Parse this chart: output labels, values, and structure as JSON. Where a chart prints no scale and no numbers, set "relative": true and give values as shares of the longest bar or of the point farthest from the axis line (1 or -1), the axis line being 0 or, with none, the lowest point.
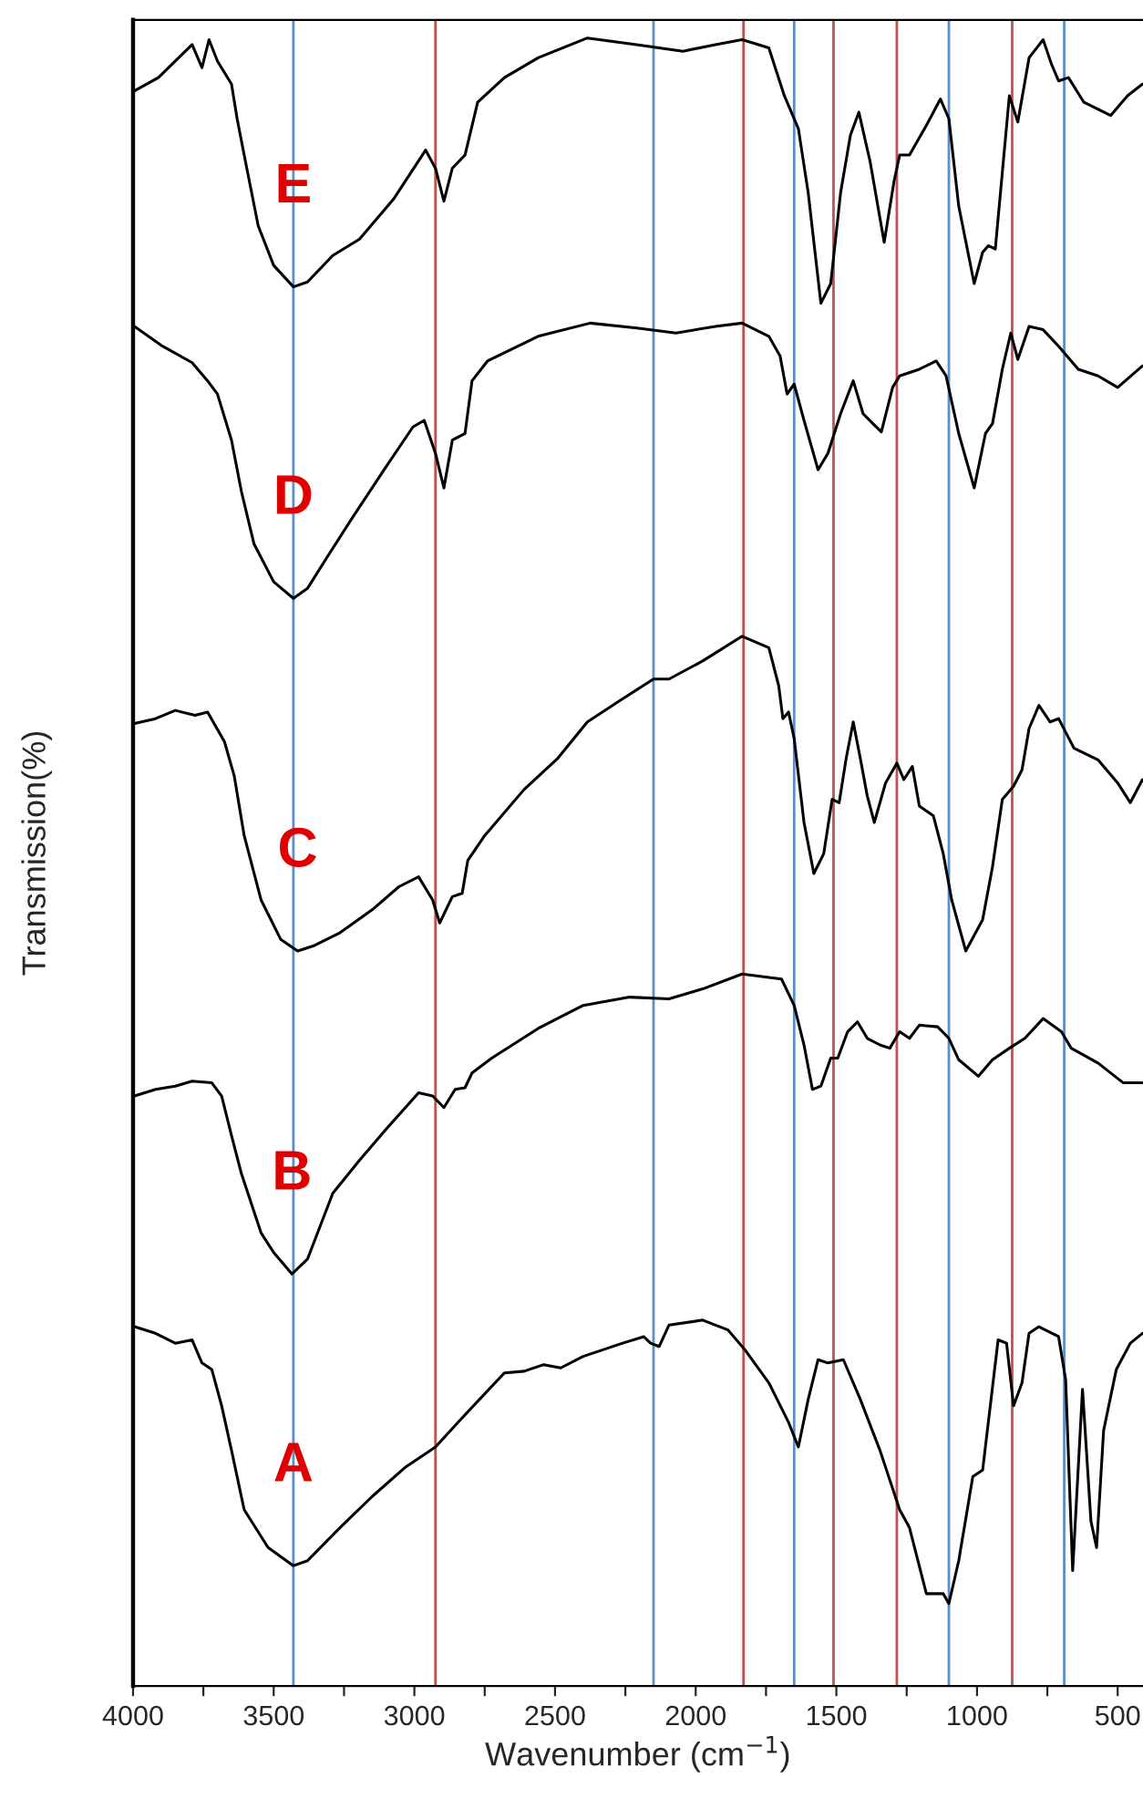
{
  "chart_data": {
    "type": "line",
    "relative": true,
    "xlabel": "Wavenumber (cm$^{−1}$)",
    "ylabel": "Transmission(%)",
    "xlim": [
      4000,
      410
    ],
    "xticks": [
      4000,
      {
        "value": 3750,
        "label": null
      },
      3500,
      {
        "value": 3250,
        "label": null
      },
      3000,
      {
        "value": 2750,
        "label": null
      },
      2500,
      {
        "value": 2250,
        "label": null
      },
      2000,
      {
        "value": 1750,
        "label": null
      },
      1500,
      {
        "value": 1250,
        "label": null
      },
      1000,
      {
        "value": 750,
        "label": null
      },
      500
    ],
    "tick_labels": "x",
    "grid": false,
    "legend": false,
    "marker": "none",
    "line_style": "solid",
    "ref_lines": [
      {
        "axis": "x",
        "value": 3430,
        "color": "#5b8fc7"
      },
      {
        "axis": "x",
        "value": 2925,
        "color": "#c0504d"
      },
      {
        "axis": "x",
        "value": 2150,
        "color": "#5b8fc7"
      },
      {
        "axis": "x",
        "value": 1830,
        "color": "#c0504d"
      },
      {
        "axis": "x",
        "value": 1650,
        "color": "#5b8fc7"
      },
      {
        "axis": "x",
        "value": 1510,
        "color": "#c0504d"
      },
      {
        "axis": "x",
        "value": 1285,
        "color": "#c0504d"
      },
      {
        "axis": "x",
        "value": 1100,
        "color": "#5b8fc7"
      },
      {
        "axis": "x",
        "value": 875,
        "color": "#c0504d"
      },
      {
        "axis": "x",
        "value": 690,
        "color": "#5b8fc7"
      }
    ],
    "series": [
      {
        "name": "E",
        "color": "#000000",
        "x": [
          3995,
          3910,
          3790,
          3755,
          3730,
          3700,
          3650,
          3630,
          3605,
          3555,
          3500,
          3430,
          3380,
          3290,
          3195,
          3075,
          2960,
          2925,
          2895,
          2865,
          2820,
          2775,
          2680,
          2560,
          2385,
          2210,
          2045,
          1930,
          1835,
          1740,
          1685,
          1635,
          1600,
          1555,
          1520,
          1485,
          1450,
          1420,
          1380,
          1330,
          1295,
          1275,
          1240,
          1180,
          1130,
          1100,
          1065,
          1010,
          980,
          960,
          935,
          885,
          855,
          815,
          765,
          735,
          710,
          675,
          620,
          525,
          465,
          412
        ],
        "values": [
          0.968,
          0.976,
          0.996,
          0.982,
          0.999,
          0.986,
          0.972,
          0.951,
          0.929,
          0.886,
          0.862,
          0.849,
          0.852,
          0.868,
          0.878,
          0.902,
          0.932,
          0.921,
          0.901,
          0.921,
          0.929,
          0.961,
          0.976,
          0.988,
          1.0,
          0.996,
          0.992,
          0.996,
          0.999,
          0.994,
          0.965,
          0.945,
          0.906,
          0.839,
          0.851,
          0.906,
          0.941,
          0.955,
          0.925,
          0.876,
          0.913,
          0.929,
          0.929,
          0.947,
          0.963,
          0.951,
          0.898,
          0.851,
          0.87,
          0.874,
          0.872,
          0.965,
          0.949,
          0.988,
          0.999,
          0.984,
          0.974,
          0.976,
          0.961,
          0.953,
          0.965,
          0.972
        ]
      },
      {
        "name": "D",
        "color": "#000000",
        "x": [
          3995,
          3895,
          3790,
          3735,
          3700,
          3650,
          3615,
          3570,
          3500,
          3430,
          3380,
          3310,
          3220,
          3100,
          3005,
          2965,
          2925,
          2895,
          2865,
          2820,
          2795,
          2740,
          2560,
          2375,
          2210,
          2070,
          1930,
          1835,
          1740,
          1700,
          1675,
          1650,
          1615,
          1565,
          1530,
          1485,
          1440,
          1405,
          1370,
          1340,
          1300,
          1275,
          1205,
          1145,
          1110,
          1065,
          1010,
          970,
          945,
          910,
          880,
          855,
          815,
          765,
          710,
          640,
          570,
          500,
          412
        ],
        "values": [
          0.825,
          0.813,
          0.803,
          0.792,
          0.784,
          0.756,
          0.725,
          0.693,
          0.67,
          0.66,
          0.666,
          0.685,
          0.709,
          0.74,
          0.764,
          0.768,
          0.748,
          0.727,
          0.756,
          0.76,
          0.792,
          0.804,
          0.819,
          0.827,
          0.824,
          0.821,
          0.825,
          0.827,
          0.819,
          0.807,
          0.784,
          0.79,
          0.768,
          0.738,
          0.748,
          0.772,
          0.792,
          0.772,
          0.766,
          0.761,
          0.788,
          0.795,
          0.799,
          0.804,
          0.795,
          0.76,
          0.727,
          0.76,
          0.766,
          0.799,
          0.821,
          0.805,
          0.825,
          0.823,
          0.813,
          0.799,
          0.795,
          0.788,
          0.801
        ]
      },
      {
        "name": "C",
        "color": "#000000",
        "x": [
          3995,
          3920,
          3850,
          3780,
          3735,
          3675,
          3640,
          3605,
          3545,
          3475,
          3415,
          3360,
          3265,
          3150,
          3055,
          2985,
          2935,
          2910,
          2865,
          2830,
          2810,
          2750,
          2610,
          2490,
          2385,
          2260,
          2150,
          2095,
          1975,
          1835,
          1740,
          1705,
          1690,
          1670,
          1650,
          1615,
          1580,
          1545,
          1515,
          1490,
          1465,
          1440,
          1415,
          1390,
          1365,
          1325,
          1285,
          1260,
          1230,
          1205,
          1155,
          1120,
          1090,
          1040,
          980,
          945,
          910,
          870,
          840,
          815,
          780,
          740,
          710,
          655,
          570,
          500,
          455,
          412
        ],
        "values": [
          0.584,
          0.587,
          0.592,
          0.589,
          0.591,
          0.573,
          0.552,
          0.516,
          0.477,
          0.453,
          0.446,
          0.449,
          0.457,
          0.471,
          0.485,
          0.491,
          0.477,
          0.463,
          0.479,
          0.481,
          0.501,
          0.516,
          0.544,
          0.563,
          0.585,
          0.599,
          0.611,
          0.611,
          0.622,
          0.637,
          0.63,
          0.607,
          0.587,
          0.591,
          0.575,
          0.524,
          0.493,
          0.505,
          0.538,
          0.536,
          0.563,
          0.585,
          0.563,
          0.54,
          0.524,
          0.548,
          0.56,
          0.55,
          0.558,
          0.534,
          0.528,
          0.505,
          0.477,
          0.446,
          0.465,
          0.497,
          0.538,
          0.546,
          0.556,
          0.581,
          0.595,
          0.585,
          0.587,
          0.569,
          0.562,
          0.548,
          0.536,
          0.55
        ]
      },
      {
        "name": "B",
        "color": "#000000",
        "x": [
          3995,
          3920,
          3850,
          3790,
          3720,
          3685,
          3650,
          3615,
          3545,
          3500,
          3435,
          3380,
          3290,
          3195,
          3100,
          2985,
          2935,
          2895,
          2855,
          2820,
          2795,
          2725,
          2560,
          2400,
          2235,
          2095,
          1975,
          1835,
          1695,
          1650,
          1615,
          1585,
          1555,
          1520,
          1495,
          1460,
          1425,
          1390,
          1345,
          1310,
          1275,
          1240,
          1205,
          1140,
          1100,
          1065,
          995,
          945,
          885,
          830,
          765,
          700,
          665,
          570,
          480,
          412
        ],
        "values": [
          0.358,
          0.362,
          0.364,
          0.367,
          0.366,
          0.358,
          0.334,
          0.311,
          0.275,
          0.263,
          0.25,
          0.259,
          0.299,
          0.319,
          0.338,
          0.36,
          0.358,
          0.351,
          0.362,
          0.363,
          0.372,
          0.381,
          0.399,
          0.413,
          0.418,
          0.417,
          0.423,
          0.432,
          0.429,
          0.413,
          0.389,
          0.362,
          0.364,
          0.381,
          0.381,
          0.397,
          0.403,
          0.393,
          0.389,
          0.387,
          0.397,
          0.393,
          0.401,
          0.4,
          0.393,
          0.38,
          0.37,
          0.38,
          0.387,
          0.393,
          0.405,
          0.397,
          0.387,
          0.378,
          0.366,
          0.366
        ]
      },
      {
        "name": "A",
        "color": "#000000",
        "x": [
          3995,
          3920,
          3850,
          3790,
          3755,
          3720,
          3685,
          3650,
          3605,
          3520,
          3430,
          3380,
          3265,
          3150,
          3030,
          2925,
          2845,
          2680,
          2610,
          2540,
          2480,
          2400,
          2260,
          2185,
          2160,
          2130,
          2095,
          1975,
          1885,
          1825,
          1740,
          1670,
          1635,
          1600,
          1565,
          1530,
          1475,
          1415,
          1345,
          1275,
          1240,
          1180,
          1120,
          1100,
          1065,
          1015,
          980,
          925,
          895,
          870,
          840,
          815,
          780,
          710,
          685,
          660,
          625,
          595,
          575,
          550,
          505,
          455,
          412
        ],
        "values": [
          0.218,
          0.214,
          0.208,
          0.21,
          0.196,
          0.192,
          0.17,
          0.143,
          0.107,
          0.084,
          0.073,
          0.076,
          0.096,
          0.115,
          0.133,
          0.145,
          0.16,
          0.19,
          0.191,
          0.195,
          0.193,
          0.2,
          0.208,
          0.212,
          0.208,
          0.206,
          0.219,
          0.222,
          0.216,
          0.204,
          0.184,
          0.16,
          0.145,
          0.174,
          0.198,
          0.196,
          0.198,
          0.174,
          0.143,
          0.107,
          0.096,
          0.056,
          0.056,
          0.05,
          0.076,
          0.127,
          0.131,
          0.21,
          0.208,
          0.17,
          0.184,
          0.214,
          0.218,
          0.212,
          0.186,
          0.07,
          0.18,
          0.1,
          0.084,
          0.155,
          0.192,
          0.208,
          0.214
        ]
      }
    ]
  }
}
